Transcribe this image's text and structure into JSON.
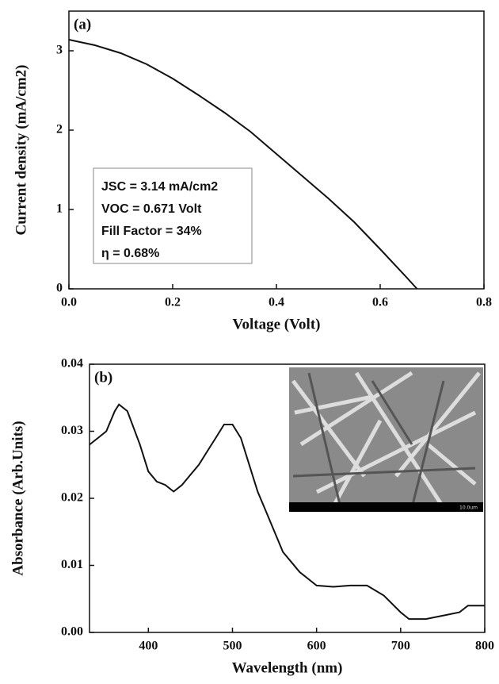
{
  "chart_data": [
    {
      "type": "line",
      "panel_label": "(a)",
      "xlabel": "Voltage (Volt)",
      "ylabel": "Current density (mA/cm2)",
      "x": [
        0,
        0.05,
        0.1,
        0.15,
        0.2,
        0.25,
        0.3,
        0.35,
        0.4,
        0.45,
        0.5,
        0.55,
        0.6,
        0.65,
        0.671
      ],
      "values": [
        3.14,
        3.07,
        2.97,
        2.83,
        2.65,
        2.44,
        2.22,
        1.98,
        1.7,
        1.42,
        1.14,
        0.84,
        0.5,
        0.15,
        0
      ],
      "color": "#111111",
      "xlim": [
        0,
        0.8
      ],
      "xticks": [
        {
          "value": 0,
          "label": "0.0"
        },
        0.2,
        0.4,
        0.6,
        0.8
      ],
      "ylim": [
        0,
        3.5
      ],
      "yticks": [
        0,
        1,
        2,
        3
      ],
      "annotations": [
        "JSC = 3.14 mA/cm2",
        "VOC = 0.671 Volt",
        "Fill Factor = 34%",
        "η = 0.68%"
      ]
    },
    {
      "type": "line",
      "panel_label": "(b)",
      "xlabel": "Wavelength (nm)",
      "ylabel": "Absorbance (Arb.Units)",
      "x": [
        330,
        340,
        350,
        360,
        365,
        375,
        390,
        400,
        410,
        420,
        430,
        440,
        450,
        460,
        470,
        480,
        490,
        500,
        510,
        520,
        530,
        540,
        550,
        560,
        570,
        580,
        590,
        600,
        620,
        640,
        660,
        680,
        700,
        710,
        730,
        750,
        770,
        780,
        800
      ],
      "values": [
        0.028,
        0.029,
        0.03,
        0.033,
        0.034,
        0.033,
        0.028,
        0.024,
        0.0225,
        0.022,
        0.021,
        0.022,
        0.0235,
        0.025,
        0.027,
        0.029,
        0.031,
        0.031,
        0.029,
        0.025,
        0.021,
        0.018,
        0.015,
        0.012,
        0.0105,
        0.009,
        0.008,
        0.007,
        0.0068,
        0.007,
        0.007,
        0.0055,
        0.003,
        0.002,
        0.002,
        0.0025,
        0.003,
        0.004,
        0.004
      ],
      "color": "#111111",
      "xlim": [
        330,
        800
      ],
      "xticks": [
        400,
        500,
        600,
        700,
        800
      ],
      "ylim": [
        0,
        0.04
      ],
      "yticks": [
        {
          "value": 0,
          "label": "0.00"
        },
        0.01,
        0.02,
        0.03,
        0.04
      ],
      "inset_label": "10.0um"
    }
  ]
}
